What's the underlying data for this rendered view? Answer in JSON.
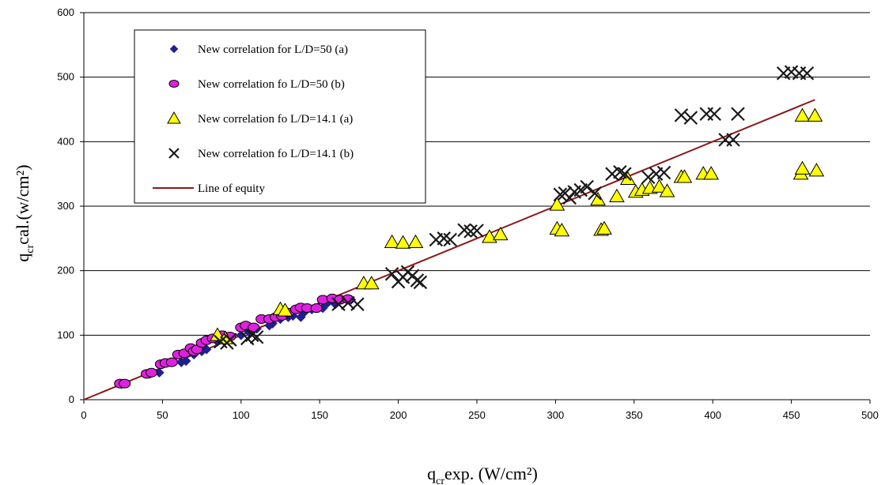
{
  "chart_data": {
    "type": "scatter",
    "xlabel": {
      "main": "q",
      "sub": "cr",
      "rest": "exp. (W/cm²)"
    },
    "ylabel": {
      "main": "q",
      "sub": "cr",
      "rest": "cal.(w/cm²)"
    },
    "xlim": [
      0,
      500
    ],
    "ylim": [
      0,
      600
    ],
    "xticks": [
      "0",
      "50",
      "100",
      "150",
      "200",
      "250",
      "300",
      "350",
      "400",
      "450",
      "500"
    ],
    "yticks": [
      "0",
      "100",
      "200",
      "300",
      "400",
      "500",
      "600"
    ],
    "grid": "horizontal",
    "legend_position": "top-left",
    "series": [
      {
        "name": "New correlation for L/D=50 (a)",
        "marker": "diamond",
        "color": "#1f1f8f",
        "points": [
          [
            24,
            24
          ],
          [
            25,
            25
          ],
          [
            42,
            40
          ],
          [
            48,
            42
          ],
          [
            50,
            55
          ],
          [
            55,
            58
          ],
          [
            62,
            58
          ],
          [
            65,
            60
          ],
          [
            70,
            70
          ],
          [
            75,
            75
          ],
          [
            78,
            78
          ],
          [
            85,
            90
          ],
          [
            90,
            95
          ],
          [
            100,
            100
          ],
          [
            105,
            105
          ],
          [
            110,
            110
          ],
          [
            118,
            115
          ],
          [
            120,
            118
          ],
          [
            125,
            125
          ],
          [
            130,
            128
          ],
          [
            133,
            130
          ],
          [
            138,
            128
          ],
          [
            140,
            135
          ],
          [
            145,
            140
          ],
          [
            152,
            142
          ],
          [
            155,
            150
          ],
          [
            160,
            148
          ],
          [
            170,
            155
          ]
        ]
      },
      {
        "name": "New correlation fo L/D=50 (b)",
        "marker": "circle",
        "color": "#e020e0",
        "points": [
          [
            23,
            25
          ],
          [
            26,
            25
          ],
          [
            40,
            40
          ],
          [
            43,
            42
          ],
          [
            49,
            55
          ],
          [
            52,
            57
          ],
          [
            56,
            58
          ],
          [
            60,
            70
          ],
          [
            64,
            72
          ],
          [
            68,
            80
          ],
          [
            70,
            75
          ],
          [
            72,
            78
          ],
          [
            75,
            88
          ],
          [
            78,
            92
          ],
          [
            82,
            95
          ],
          [
            88,
            100
          ],
          [
            93,
            98
          ],
          [
            100,
            112
          ],
          [
            103,
            115
          ],
          [
            108,
            112
          ],
          [
            113,
            125
          ],
          [
            118,
            125
          ],
          [
            122,
            128
          ],
          [
            126,
            130
          ],
          [
            130,
            135
          ],
          [
            135,
            140
          ],
          [
            138,
            143
          ],
          [
            142,
            142
          ],
          [
            148,
            142
          ],
          [
            152,
            155
          ],
          [
            158,
            157
          ],
          [
            163,
            155
          ],
          [
            168,
            156
          ]
        ]
      },
      {
        "name": "New correlation fo L/D=14.1 (a)",
        "marker": "triangle",
        "color": "#ffff00",
        "points": [
          [
            85,
            100
          ],
          [
            90,
            95
          ],
          [
            125,
            140
          ],
          [
            128,
            138
          ],
          [
            178,
            180
          ],
          [
            183,
            180
          ],
          [
            196,
            244
          ],
          [
            203,
            243
          ],
          [
            211,
            244
          ],
          [
            258,
            252
          ],
          [
            265,
            256
          ],
          [
            301,
            302
          ],
          [
            301,
            265
          ],
          [
            304,
            262
          ],
          [
            327,
            310
          ],
          [
            329,
            263
          ],
          [
            331,
            265
          ],
          [
            339,
            315
          ],
          [
            346,
            342
          ],
          [
            351,
            322
          ],
          [
            355,
            325
          ],
          [
            360,
            328
          ],
          [
            366,
            330
          ],
          [
            371,
            323
          ],
          [
            380,
            345
          ],
          [
            382,
            345
          ],
          [
            394,
            350
          ],
          [
            399,
            350
          ],
          [
            456,
            350
          ],
          [
            457,
            358
          ],
          [
            457,
            440
          ],
          [
            465,
            440
          ],
          [
            466,
            355
          ]
        ]
      },
      {
        "name": "New correlation fo L/D=14.1 (b)",
        "marker": "x",
        "color": "#1a1a1a",
        "points": [
          [
            87,
            90
          ],
          [
            91,
            88
          ],
          [
            93,
            93
          ],
          [
            104,
            95
          ],
          [
            107,
            100
          ],
          [
            110,
            97
          ],
          [
            162,
            148
          ],
          [
            168,
            150
          ],
          [
            174,
            148
          ],
          [
            196,
            195
          ],
          [
            200,
            183
          ],
          [
            203,
            190
          ],
          [
            206,
            198
          ],
          [
            209,
            192
          ],
          [
            212,
            185
          ],
          [
            214,
            182
          ],
          [
            224,
            248
          ],
          [
            229,
            250
          ],
          [
            233,
            248
          ],
          [
            242,
            263
          ],
          [
            246,
            261
          ],
          [
            250,
            262
          ],
          [
            303,
            318
          ],
          [
            306,
            320
          ],
          [
            309,
            313
          ],
          [
            312,
            322
          ],
          [
            316,
            325
          ],
          [
            320,
            330
          ],
          [
            325,
            320
          ],
          [
            336,
            350
          ],
          [
            341,
            353
          ],
          [
            344,
            350
          ],
          [
            359,
            345
          ],
          [
            364,
            350
          ],
          [
            369,
            352
          ],
          [
            380,
            441
          ],
          [
            386,
            437
          ],
          [
            396,
            443
          ],
          [
            401,
            443
          ],
          [
            408,
            403
          ],
          [
            413,
            403
          ],
          [
            416,
            443
          ],
          [
            445,
            506
          ],
          [
            450,
            508
          ],
          [
            455,
            506
          ],
          [
            460,
            506
          ]
        ]
      },
      {
        "name": "Line of equity",
        "marker": "line",
        "color": "#8b1a1a",
        "points": [
          [
            0,
            0
          ],
          [
            465,
            465
          ]
        ]
      }
    ]
  }
}
